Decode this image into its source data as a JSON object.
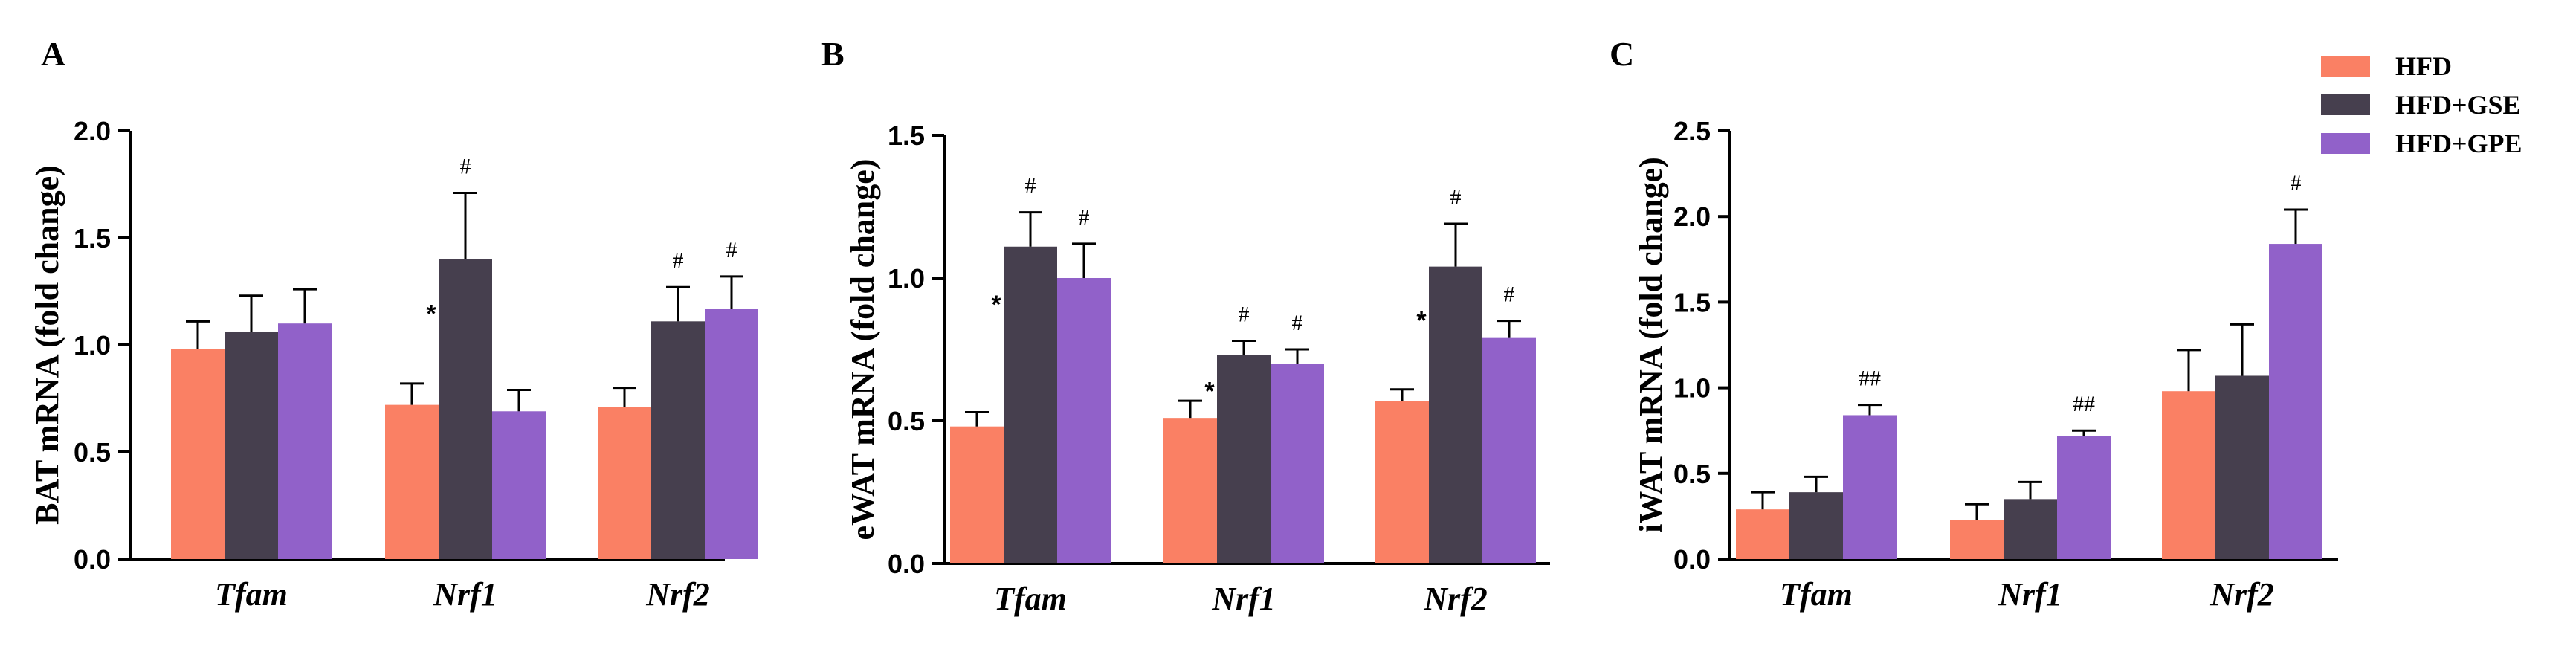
{
  "legend": {
    "items": [
      {
        "label": "HFD",
        "color": "#FA8064"
      },
      {
        "label": "HFD+GSE",
        "color": "#463F4E"
      },
      {
        "label": "HFD+GPE",
        "color": "#9161C9"
      }
    ]
  },
  "chart_data": [
    {
      "panel": "A",
      "type": "bar",
      "ylabel": "BAT mRNA (fold change)",
      "ylim": [
        0,
        2.0
      ],
      "yticks": [
        "0.0",
        "0.5",
        "1.0",
        "1.5",
        "2.0"
      ],
      "categories": [
        "Tfam",
        "Nrf1",
        "Nrf2"
      ],
      "series": [
        {
          "name": "HFD",
          "values": [
            0.98,
            0.72,
            0.71
          ],
          "errors": [
            0.13,
            0.1,
            0.09
          ],
          "annotations": [
            "",
            "",
            ""
          ]
        },
        {
          "name": "HFD+GSE",
          "values": [
            1.06,
            1.4,
            1.11
          ],
          "errors": [
            0.17,
            0.31,
            0.16
          ],
          "annotations": [
            "",
            "#",
            "#"
          ],
          "stars": [
            "",
            "*",
            ""
          ]
        },
        {
          "name": "HFD+GPE",
          "values": [
            1.1,
            0.69,
            1.17
          ],
          "errors": [
            0.16,
            0.1,
            0.15
          ],
          "annotations": [
            "",
            "",
            "#"
          ]
        }
      ]
    },
    {
      "panel": "B",
      "type": "bar",
      "ylabel": "eWAT mRNA (fold change)",
      "ylim": [
        0,
        1.5
      ],
      "yticks": [
        "0.0",
        "0.5",
        "1.0",
        "1.5"
      ],
      "categories": [
        "Tfam",
        "Nrf1",
        "Nrf2"
      ],
      "series": [
        {
          "name": "HFD",
          "values": [
            0.48,
            0.51,
            0.57
          ],
          "errors": [
            0.05,
            0.06,
            0.04
          ],
          "annotations": [
            "",
            "",
            ""
          ]
        },
        {
          "name": "HFD+GSE",
          "values": [
            1.11,
            0.73,
            1.04
          ],
          "errors": [
            0.12,
            0.05,
            0.15
          ],
          "annotations": [
            "#",
            "#",
            "#"
          ],
          "stars": [
            "*",
            "*",
            "*"
          ]
        },
        {
          "name": "HFD+GPE",
          "values": [
            1.0,
            0.7,
            0.79
          ],
          "errors": [
            0.12,
            0.05,
            0.06
          ],
          "annotations": [
            "#",
            "#",
            "#"
          ]
        }
      ]
    },
    {
      "panel": "C",
      "type": "bar",
      "ylabel": "iWAT mRNA (fold change)",
      "ylim": [
        0,
        2.5
      ],
      "yticks": [
        "0.0",
        "0.5",
        "1.0",
        "1.5",
        "2.0",
        "2.5"
      ],
      "categories": [
        "Tfam",
        "Nrf1",
        "Nrf2"
      ],
      "series": [
        {
          "name": "HFD",
          "values": [
            0.29,
            0.23,
            0.98
          ],
          "errors": [
            0.1,
            0.09,
            0.24
          ],
          "annotations": [
            "",
            "",
            ""
          ]
        },
        {
          "name": "HFD+GSE",
          "values": [
            0.39,
            0.35,
            1.07
          ],
          "errors": [
            0.09,
            0.1,
            0.3
          ],
          "annotations": [
            "",
            "",
            ""
          ]
        },
        {
          "name": "HFD+GPE",
          "values": [
            0.84,
            0.72,
            1.84
          ],
          "errors": [
            0.06,
            0.03,
            0.2
          ],
          "annotations": [
            "##",
            "##",
            "#"
          ]
        }
      ]
    }
  ]
}
